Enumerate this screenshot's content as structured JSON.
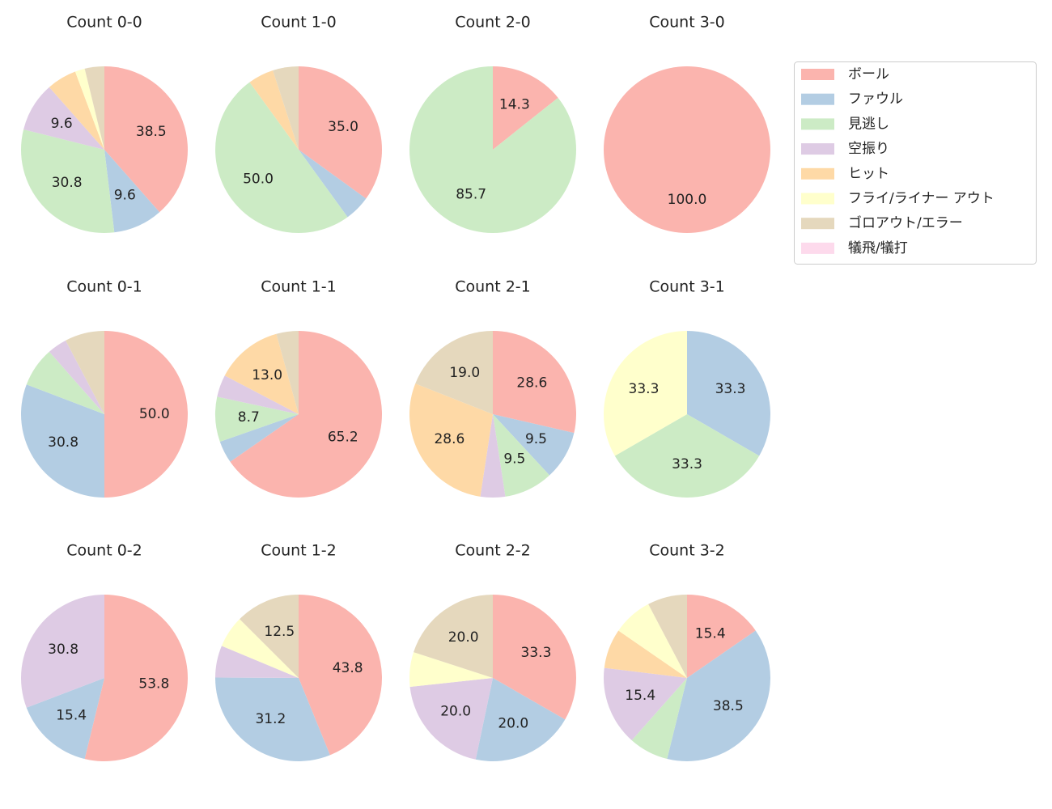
{
  "legend": {
    "labels": [
      "ボール",
      "ファウル",
      "見逃し",
      "空振り",
      "ヒット",
      "フライ/ライナー アウト",
      "ゴロアウト/エラー",
      "犠飛/犠打"
    ],
    "colors": [
      "#fbb4ae",
      "#b3cde3",
      "#ccebc5",
      "#decbe4",
      "#fed9a6",
      "#ffffcc",
      "#e5d8bd",
      "#fddaec"
    ]
  },
  "chart_data": [
    {
      "type": "pie",
      "title": "Count 0-0",
      "values": [
        38.5,
        9.6,
        30.8,
        9.6,
        5.8,
        1.9,
        3.8,
        0
      ],
      "value_labels": [
        "38.5",
        "9.6",
        "30.8",
        "9.6",
        null,
        null,
        null,
        null
      ]
    },
    {
      "type": "pie",
      "title": "Count 1-0",
      "values": [
        35.0,
        5.0,
        50.0,
        0,
        5.0,
        0,
        5.0,
        0
      ],
      "value_labels": [
        "35.0",
        null,
        "50.0",
        null,
        null,
        null,
        null,
        null
      ]
    },
    {
      "type": "pie",
      "title": "Count 2-0",
      "values": [
        14.3,
        0,
        85.7,
        0,
        0,
        0,
        0,
        0
      ],
      "value_labels": [
        "14.3",
        null,
        "85.7",
        null,
        null,
        null,
        null,
        null
      ]
    },
    {
      "type": "pie",
      "title": "Count 3-0",
      "values": [
        100,
        0,
        0,
        0,
        0,
        0,
        0,
        0
      ],
      "value_labels": [
        "100.0",
        null,
        null,
        null,
        null,
        null,
        null,
        null
      ]
    },
    {
      "type": "pie",
      "title": "Count 0-1",
      "values": [
        50.0,
        30.8,
        7.7,
        3.8,
        0,
        0,
        7.7,
        0
      ],
      "value_labels": [
        "50.0",
        "30.8",
        null,
        null,
        null,
        null,
        null,
        null
      ]
    },
    {
      "type": "pie",
      "title": "Count 1-1",
      "values": [
        65.2,
        4.3,
        8.7,
        4.3,
        13.0,
        0,
        4.3,
        0
      ],
      "value_labels": [
        "65.2",
        null,
        "8.7",
        null,
        "13.0",
        null,
        null,
        null
      ]
    },
    {
      "type": "pie",
      "title": "Count 2-1",
      "values": [
        28.6,
        9.5,
        9.5,
        4.8,
        28.6,
        0,
        19.0,
        0
      ],
      "value_labels": [
        "28.6",
        "9.5",
        "9.5",
        null,
        "28.6",
        null,
        "19.0",
        null
      ]
    },
    {
      "type": "pie",
      "title": "Count 3-1",
      "values": [
        0,
        33.3,
        33.3,
        0,
        0,
        33.3,
        0,
        0
      ],
      "value_labels": [
        null,
        "33.3",
        "33.3",
        null,
        null,
        "33.3",
        null,
        null
      ]
    },
    {
      "type": "pie",
      "title": "Count 0-2",
      "values": [
        53.8,
        15.4,
        0,
        30.8,
        0,
        0,
        0,
        0
      ],
      "value_labels": [
        "53.8",
        "15.4",
        null,
        "30.8",
        null,
        null,
        null,
        null
      ]
    },
    {
      "type": "pie",
      "title": "Count 1-2",
      "values": [
        43.8,
        31.2,
        0,
        6.2,
        0,
        6.2,
        12.5,
        0
      ],
      "value_labels": [
        "43.8",
        "31.2",
        null,
        null,
        null,
        null,
        "12.5",
        null
      ]
    },
    {
      "type": "pie",
      "title": "Count 2-2",
      "values": [
        33.3,
        20.0,
        0,
        20.0,
        0,
        6.7,
        20.0,
        0
      ],
      "value_labels": [
        "33.3",
        "20.0",
        null,
        "20.0",
        null,
        null,
        "20.0",
        null
      ]
    },
    {
      "type": "pie",
      "title": "Count 3-2",
      "values": [
        15.4,
        38.5,
        7.7,
        15.4,
        7.7,
        7.7,
        7.7,
        0
      ],
      "value_labels": [
        "15.4",
        "38.5",
        null,
        "15.4",
        null,
        null,
        null,
        null
      ]
    }
  ]
}
